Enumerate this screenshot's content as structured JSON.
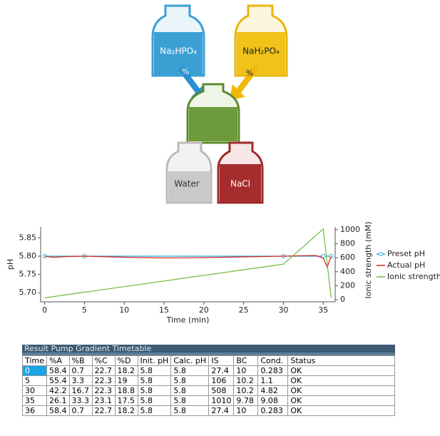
{
  "diagram": {
    "bottles": [
      "Na₂HPO₄",
      "NaH₂PO₄",
      "Water",
      "NaCl"
    ],
    "arrows": [
      "%",
      "%"
    ]
  },
  "chart_data": {
    "type": "line",
    "x_label": "Time (min)",
    "y_label": "pH",
    "y2_label": "Ionic strength (mM)",
    "xlim": [
      -0.5,
      36.5
    ],
    "xticks": [
      0,
      5,
      10,
      15,
      20,
      25,
      30,
      35
    ],
    "ylim": [
      5.675,
      5.88
    ],
    "yticks": [
      {
        "value": 5.7,
        "label": "5.70"
      },
      5.75,
      {
        "value": 5.8,
        "label": "5.80"
      },
      5.85
    ],
    "y2lim": [
      -30,
      1040
    ],
    "y2ticks": [
      0,
      200,
      400,
      600,
      800,
      1000
    ],
    "legend": "right",
    "series": [
      {
        "name": "Preset pH",
        "color": "#29a8e0",
        "marker": true,
        "x": [
          0,
          5,
          30,
          35,
          36
        ],
        "values": [
          5.8,
          5.8,
          5.8,
          5.8,
          5.8
        ]
      },
      {
        "name": "Actual pH",
        "color": "#d9261c",
        "marker": false,
        "x": [
          0,
          1,
          3,
          5,
          10,
          15,
          20,
          25,
          30,
          34,
          35,
          35.5,
          36
        ],
        "values": [
          5.8,
          5.797,
          5.799,
          5.8,
          5.797,
          5.795,
          5.796,
          5.798,
          5.8,
          5.802,
          5.795,
          5.77,
          5.8
        ]
      },
      {
        "name": "Ionic strength",
        "color": "#6cbb3c",
        "marker": false,
        "axis": "y2",
        "x": [
          0,
          30,
          35,
          36
        ],
        "values": [
          27.4,
          508,
          1010,
          27.4
        ]
      }
    ]
  },
  "table": {
    "title": "Result Pump Gradient Timetable",
    "columns": [
      "Time",
      "%A",
      "%B",
      "%C",
      "%D",
      "Init. pH",
      "Calc. pH",
      "IS",
      "BC",
      "Cond.",
      "Status"
    ],
    "rows": [
      [
        "0",
        "58.4",
        "0.7",
        "22.7",
        "18.2",
        "5.8",
        "5.8",
        "27.4",
        "10",
        "0.283",
        "OK"
      ],
      [
        "5",
        "55.4",
        "3.3",
        "22.3",
        "19",
        "5.8",
        "5.8",
        "106",
        "10.2",
        "1.1",
        "OK"
      ],
      [
        "30",
        "42.2",
        "16.7",
        "22.3",
        "18.8",
        "5.8",
        "5.8",
        "508",
        "10.2",
        "4.82",
        "OK"
      ],
      [
        "35",
        "26.1",
        "33.3",
        "23.1",
        "17.5",
        "5.8",
        "5.8",
        "1010",
        "9.78",
        "9.08",
        "OK"
      ],
      [
        "36",
        "58.4",
        "0.7",
        "22.7",
        "18.2",
        "5.8",
        "5.8",
        "27.4",
        "10",
        "0.283",
        "OK"
      ]
    ]
  }
}
